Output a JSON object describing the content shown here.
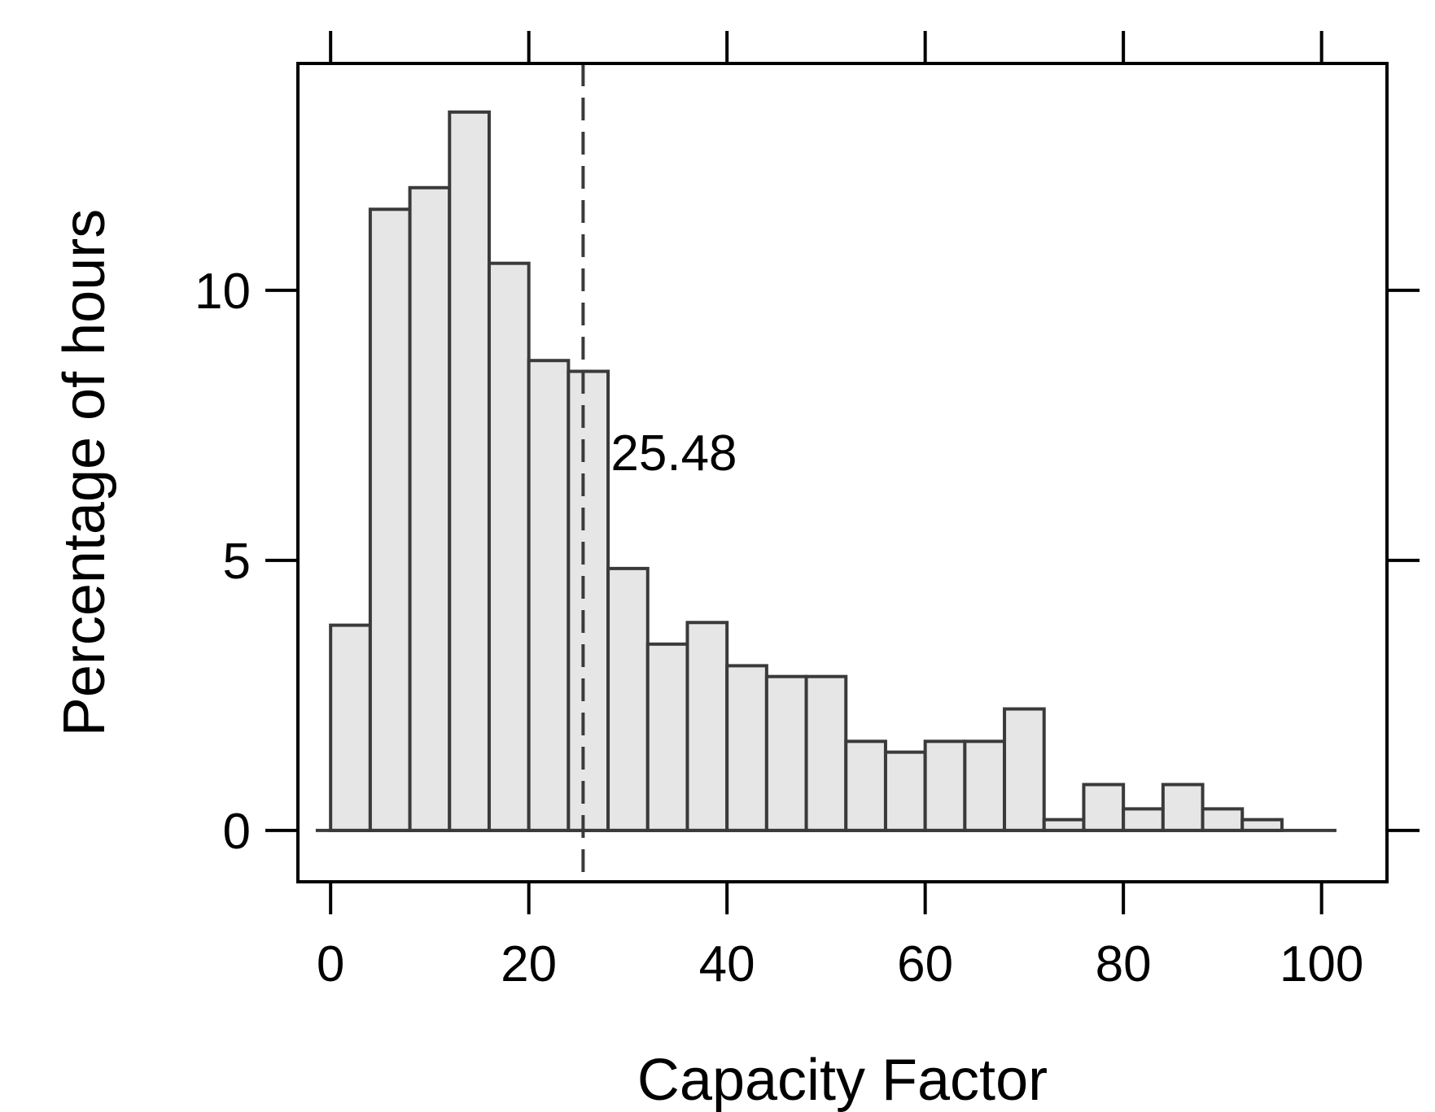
{
  "chart_data": {
    "type": "bar",
    "title": "",
    "xlabel": "Capacity Factor",
    "ylabel": "Percentage of hours",
    "xlim": [
      -3.3,
      106.6
    ],
    "ylim": [
      -0.95,
      14.2
    ],
    "x_ticks": [
      0,
      20,
      40,
      60,
      80,
      100
    ],
    "x_tick_labels": [
      "0",
      "20",
      "40",
      "60",
      "80",
      "100"
    ],
    "y_ticks": [
      0,
      5,
      10
    ],
    "y_tick_labels": [
      "0",
      "5",
      "10"
    ],
    "bin_edges": [
      0,
      4,
      8,
      12,
      16,
      20,
      24,
      28,
      32,
      36,
      40,
      44,
      48,
      52,
      56,
      60,
      64,
      68,
      72,
      76,
      80,
      84,
      88,
      92,
      96,
      100
    ],
    "values": [
      3.8,
      11.5,
      11.9,
      13.3,
      10.5,
      8.7,
      8.5,
      4.85,
      3.45,
      3.85,
      3.05,
      2.85,
      2.85,
      1.65,
      1.45,
      1.65,
      1.65,
      2.25,
      0.2,
      0.85,
      0.4,
      0.85,
      0.4,
      0.2,
      0
    ],
    "reference_line": {
      "x": 25.48,
      "label": "25.48",
      "style": "dashed"
    },
    "grid": false,
    "legend": "none",
    "colors": {
      "bar_fill": "#e6e6e6",
      "bar_stroke": "#3a3a3a",
      "axis": "#000000",
      "reference_line": "#3a3a3a"
    }
  }
}
